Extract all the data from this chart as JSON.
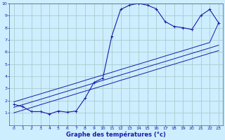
{
  "title": "Graphe des températures (°c)",
  "bg_color": "#cceeff",
  "grid_color": "#aacccc",
  "line_color": "#1a1aaa",
  "x_data": [
    0,
    1,
    2,
    3,
    4,
    5,
    6,
    7,
    8,
    9,
    10,
    11,
    12,
    13,
    14,
    15,
    16,
    17,
    18,
    19,
    20,
    21,
    22,
    23
  ],
  "y_curve": [
    1.7,
    1.5,
    1.1,
    1.1,
    0.9,
    1.15,
    1.05,
    1.15,
    2.2,
    3.5,
    3.85,
    7.3,
    9.5,
    9.85,
    10.0,
    9.85,
    9.55,
    8.5,
    8.1,
    8.0,
    7.85,
    9.0,
    9.5,
    8.4
  ],
  "y_line1": [
    1.0,
    1.22,
    1.44,
    1.67,
    1.89,
    2.11,
    2.33,
    2.56,
    2.78,
    3.0,
    3.22,
    3.44,
    3.67,
    3.89,
    4.11,
    4.33,
    4.56,
    4.78,
    5.0,
    5.22,
    5.44,
    5.67,
    5.89,
    6.11
  ],
  "y_line2": [
    1.45,
    1.67,
    1.89,
    2.11,
    2.33,
    2.56,
    2.78,
    3.0,
    3.22,
    3.44,
    3.67,
    3.89,
    4.11,
    4.33,
    4.56,
    4.78,
    5.0,
    5.22,
    5.44,
    5.67,
    5.89,
    6.11,
    6.33,
    6.56
  ],
  "y_line3": [
    1.9,
    2.12,
    2.34,
    2.56,
    2.78,
    3.0,
    3.22,
    3.44,
    3.67,
    3.89,
    4.11,
    4.33,
    4.56,
    4.78,
    5.0,
    5.22,
    5.44,
    5.67,
    5.89,
    6.11,
    6.33,
    6.56,
    6.78,
    8.4
  ],
  "xlim": [
    -0.5,
    23.5
  ],
  "ylim": [
    0,
    10
  ],
  "yticks": [
    1,
    2,
    3,
    4,
    5,
    6,
    7,
    8,
    9,
    10
  ],
  "xticks": [
    0,
    1,
    2,
    3,
    4,
    5,
    6,
    7,
    8,
    9,
    10,
    11,
    12,
    13,
    14,
    15,
    16,
    17,
    18,
    19,
    20,
    21,
    22,
    23
  ]
}
